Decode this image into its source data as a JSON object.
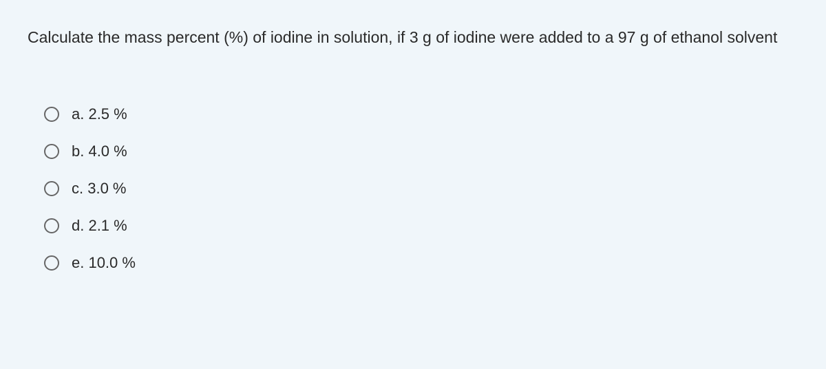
{
  "question": {
    "text": "Calculate the mass percent (%) of iodine in solution, if 3 g of iodine were added to a 97 g of ethanol solvent",
    "text_color": "#2a2a2a",
    "text_fontsize": 23,
    "background_color": "#f0f6fa"
  },
  "options": [
    {
      "label": "a. 2.5 %"
    },
    {
      "label": "b. 4.0 %"
    },
    {
      "label": "c. 3.0 %"
    },
    {
      "label": "d. 2.1 %"
    },
    {
      "label": "e. 10.0 %"
    }
  ],
  "radio": {
    "border_color": "#666666",
    "size": 22
  }
}
